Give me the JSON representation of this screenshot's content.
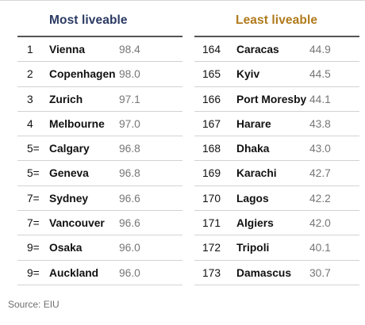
{
  "most": {
    "title": "Most liveable",
    "rows": [
      {
        "rank": "1",
        "city": "Vienna",
        "score": "98.4"
      },
      {
        "rank": "2",
        "city": "Copenhagen",
        "score": "98.0"
      },
      {
        "rank": "3",
        "city": "Zurich",
        "score": "97.1"
      },
      {
        "rank": "4",
        "city": "Melbourne",
        "score": "97.0"
      },
      {
        "rank": "5=",
        "city": "Calgary",
        "score": "96.8"
      },
      {
        "rank": "5=",
        "city": "Geneva",
        "score": "96.8"
      },
      {
        "rank": "7=",
        "city": "Sydney",
        "score": "96.6"
      },
      {
        "rank": "7=",
        "city": "Vancouver",
        "score": "96.6"
      },
      {
        "rank": "9=",
        "city": "Osaka",
        "score": "96.0"
      },
      {
        "rank": "9=",
        "city": "Auckland",
        "score": "96.0"
      }
    ]
  },
  "least": {
    "title": "Least liveable",
    "rows": [
      {
        "rank": "164",
        "city": "Caracas",
        "score": "44.9"
      },
      {
        "rank": "165",
        "city": "Kyiv",
        "score": "44.5"
      },
      {
        "rank": "166",
        "city": "Port Moresby",
        "score": "44.1"
      },
      {
        "rank": "167",
        "city": "Harare",
        "score": "43.8"
      },
      {
        "rank": "168",
        "city": "Dhaka",
        "score": "43.0"
      },
      {
        "rank": "169",
        "city": "Karachi",
        "score": "42.7"
      },
      {
        "rank": "170",
        "city": "Lagos",
        "score": "42.2"
      },
      {
        "rank": "171",
        "city": "Algiers",
        "score": "42.0"
      },
      {
        "rank": "172",
        "city": "Tripoli",
        "score": "40.1"
      },
      {
        "rank": "173",
        "city": "Damascus",
        "score": "30.7"
      }
    ]
  },
  "source": "Source: EIU",
  "colors": {
    "most_title": "#2b3a63",
    "least_title": "#b07a1c"
  }
}
